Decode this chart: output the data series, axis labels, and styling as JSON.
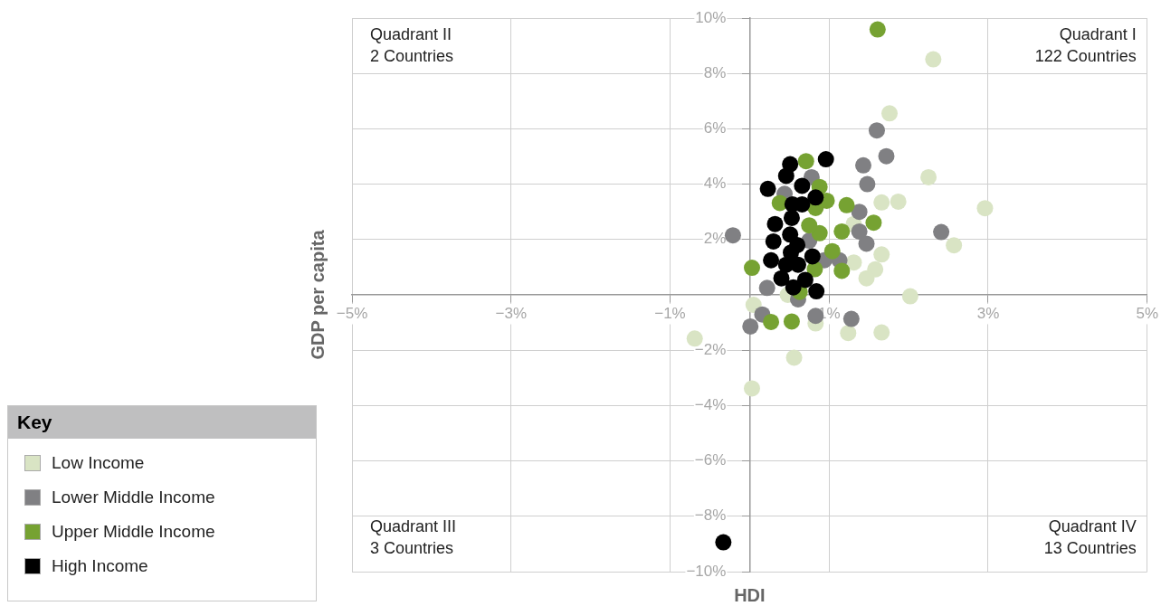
{
  "chart_data": {
    "type": "scatter",
    "xlabel": "HDI",
    "ylabel": "GDP per capita",
    "legend_title": "Key",
    "legend": "bottom left",
    "marker": "circle",
    "grid": true,
    "xlim": [
      -5,
      5
    ],
    "ylim": [
      -10,
      10
    ],
    "xticks": [
      {
        "value": -5,
        "label": "−5%"
      },
      {
        "value": -3,
        "label": "−3%"
      },
      {
        "value": -1,
        "label": "−1%"
      },
      {
        "value": 1,
        "label": "1%"
      },
      {
        "value": 3,
        "label": "3%"
      },
      {
        "value": 5,
        "label": "5%"
      }
    ],
    "yticks": [
      {
        "value": -10,
        "label": "−10%"
      },
      {
        "value": -8,
        "label": "−8%"
      },
      {
        "value": -6,
        "label": "−6%"
      },
      {
        "value": -4,
        "label": "−4%"
      },
      {
        "value": -2,
        "label": "−2%"
      },
      {
        "value": 2,
        "label": "2%"
      },
      {
        "value": 4,
        "label": "4%"
      },
      {
        "value": 6,
        "label": "6%"
      },
      {
        "value": 8,
        "label": "8%"
      },
      {
        "value": 10,
        "label": "10%"
      }
    ],
    "annotations": [
      "Quadrant II\n2 Countries",
      "Quadrant I\n122 Countries",
      "Quadrant III\n3 Countries",
      "Quadrant IV\n13 Countries"
    ],
    "series": [
      {
        "name": "Low Income",
        "color": "#d9e4c4",
        "x": [
          2.31,
          1.76,
          2.25,
          2.96,
          1.66,
          1.87,
          2.57,
          1.66,
          1.58,
          1.47,
          1.31,
          2.02,
          1.24,
          1.66,
          -0.69,
          0.05,
          0.56,
          0.03,
          0.83,
          1.31,
          0.48
        ],
        "values": [
          8.51,
          6.56,
          4.25,
          3.13,
          3.34,
          3.37,
          1.79,
          1.46,
          0.92,
          0.6,
          1.17,
          -0.05,
          -1.38,
          -1.36,
          -1.58,
          -0.36,
          -2.27,
          -3.38,
          -1.03,
          2.56,
          0.0
        ]
      },
      {
        "name": "Lower Middle Income",
        "color": "#808083",
        "x": [
          1.6,
          1.72,
          1.43,
          1.48,
          2.41,
          -0.21,
          1.38,
          1.38,
          1.47,
          1.13,
          0.22,
          0.16,
          0.01,
          0.83,
          1.28,
          0.61,
          0.44,
          0.78,
          0.75,
          0.94
        ],
        "values": [
          5.94,
          5.01,
          4.68,
          4.0,
          2.27,
          2.15,
          3.0,
          2.29,
          1.85,
          1.25,
          0.25,
          -0.71,
          -1.14,
          -0.76,
          -0.87,
          -0.16,
          3.65,
          4.25,
          1.96,
          1.25
        ]
      },
      {
        "name": "Upper Middle Income",
        "color": "#76a232",
        "x": [
          1.61,
          0.71,
          0.88,
          0.38,
          0.97,
          0.83,
          1.22,
          1.56,
          1.16,
          0.88,
          0.75,
          1.04,
          1.16,
          0.82,
          0.03,
          0.27,
          0.53,
          0.63
        ],
        "values": [
          9.59,
          4.83,
          3.9,
          3.32,
          3.4,
          3.14,
          3.24,
          2.61,
          2.29,
          2.23,
          2.51,
          1.58,
          0.87,
          0.93,
          0.98,
          -0.98,
          -0.96,
          0.11
        ]
      },
      {
        "name": "High Income",
        "color": "#000000",
        "x": [
          0.96,
          0.51,
          0.46,
          0.23,
          0.66,
          0.83,
          0.66,
          0.54,
          0.53,
          0.32,
          0.51,
          0.3,
          0.6,
          0.52,
          0.27,
          0.46,
          0.61,
          0.79,
          0.4,
          0.7,
          0.55,
          0.84,
          -0.33
        ],
        "values": [
          4.9,
          4.72,
          4.3,
          3.83,
          3.94,
          3.52,
          3.27,
          3.27,
          2.78,
          2.56,
          2.18,
          1.93,
          1.8,
          1.53,
          1.25,
          1.09,
          1.09,
          1.39,
          0.6,
          0.54,
          0.27,
          0.13,
          -8.94
        ]
      }
    ]
  }
}
